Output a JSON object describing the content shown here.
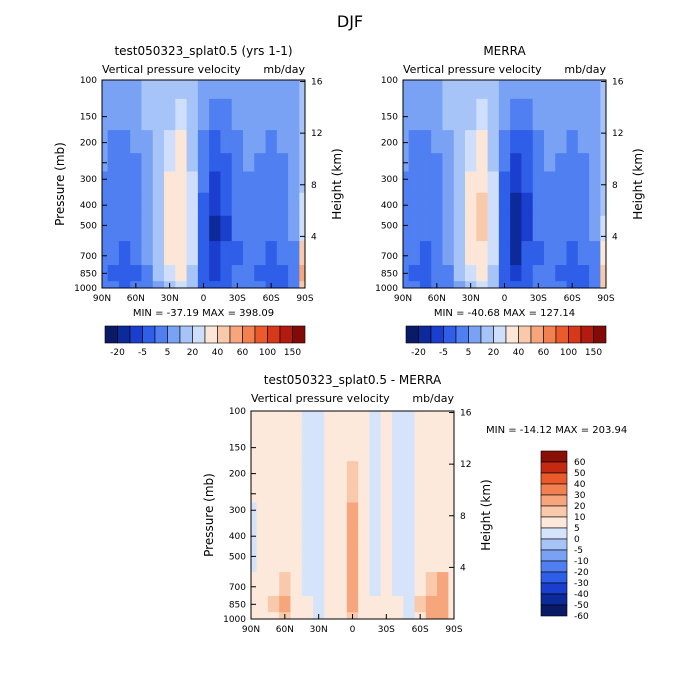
{
  "figure": {
    "title": "DJF"
  },
  "palettes": {
    "top": [
      "#0a1a66",
      "#0d2a9a",
      "#1a3fcf",
      "#2f5fe8",
      "#4f7ff0",
      "#7aa2f4",
      "#a7c4f8",
      "#cfdffb",
      "#fbe6d8",
      "#f9c9ab",
      "#f6a57c",
      "#f28050",
      "#ea5a2a",
      "#d6381a",
      "#b31b10",
      "#820a07"
    ],
    "diff": [
      "#0a1a66",
      "#0d2a9a",
      "#1a3fcf",
      "#2f5fe8",
      "#4f7ff0",
      "#7aa2f4",
      "#a7c4f8",
      "#d6e4fb",
      "#fde9dc",
      "#f9c9ab",
      "#f6a57c",
      "#f28050",
      "#ea5a2a",
      "#c42a12",
      "#8a0f07"
    ]
  },
  "chart_data": [
    {
      "type": "heatmap",
      "title": "test050323_splat0.5 (yrs 1-1)",
      "subtitle_left": "Vertical pressure velocity",
      "subtitle_right": "mb/day",
      "ylabel": "Pressure (mb)",
      "ylabel_right": "Height (km)",
      "x_ticks": [
        "90N",
        "60N",
        "30N",
        "0",
        "30S",
        "60S",
        "90S"
      ],
      "y_ticks": [
        "100",
        "150",
        "200",
        "250",
        "300",
        "400",
        "500",
        "700",
        "850",
        "1000"
      ],
      "y2_ticks": [
        "16",
        "12",
        "8",
        "4"
      ],
      "stats": "MIN = -37.19   MAX = 398.09",
      "colorbar": {
        "orientation": "horizontal",
        "labels": [
          "-20",
          "-5",
          "5",
          "20",
          "40",
          "60",
          "100",
          "150"
        ]
      },
      "field": {
        "type": "upward-heavy",
        "x": [
          -90,
          -80,
          -70,
          -60,
          -50,
          -40,
          -30,
          -20,
          -10,
          0,
          10,
          20,
          30,
          40,
          50,
          60,
          70,
          80,
          90
        ],
        "levels": [
          1000,
          850,
          700,
          500,
          400,
          300,
          250,
          200,
          150,
          100
        ],
        "values": [
          [
            -8,
            -10,
            -12,
            -10,
            -6,
            -2,
            4,
            6,
            2,
            -12,
            -18,
            -14,
            -8,
            -6,
            -10,
            -12,
            -14,
            -10,
            30
          ],
          [
            -10,
            -12,
            -14,
            -12,
            -6,
            0,
            8,
            10,
            4,
            -16,
            -24,
            -18,
            -10,
            -8,
            -12,
            -14,
            -12,
            -8,
            40
          ],
          [
            -8,
            -10,
            -12,
            -8,
            -4,
            2,
            10,
            14,
            6,
            -14,
            -28,
            -20,
            -12,
            -8,
            -10,
            -12,
            -10,
            -6,
            20
          ],
          [
            -6,
            -8,
            -10,
            -6,
            -2,
            4,
            12,
            18,
            6,
            -12,
            -32,
            -22,
            -10,
            -6,
            -8,
            -10,
            -8,
            -4,
            8
          ],
          [
            -6,
            -8,
            -10,
            -6,
            -2,
            4,
            12,
            18,
            8,
            -12,
            -30,
            -20,
            -10,
            -6,
            -8,
            -10,
            -8,
            -4,
            6
          ],
          [
            -6,
            -8,
            -8,
            -6,
            -2,
            2,
            10,
            16,
            6,
            -10,
            -26,
            -18,
            -8,
            -6,
            -6,
            -8,
            -6,
            -4,
            4
          ],
          [
            -4,
            -6,
            -8,
            -6,
            -2,
            2,
            8,
            12,
            4,
            -8,
            -20,
            -14,
            -8,
            -4,
            -6,
            -8,
            -6,
            -4,
            2
          ],
          [
            -4,
            -6,
            -6,
            -4,
            -2,
            0,
            6,
            10,
            2,
            -6,
            -14,
            -10,
            -6,
            -4,
            -4,
            -6,
            -4,
            -2,
            0
          ],
          [
            -2,
            -4,
            -4,
            -2,
            0,
            0,
            4,
            6,
            0,
            -4,
            -8,
            -6,
            -4,
            -2,
            -2,
            -4,
            -2,
            -2,
            0
          ],
          [
            -2,
            -2,
            -2,
            -2,
            0,
            0,
            2,
            2,
            0,
            -2,
            -4,
            -2,
            -2,
            -2,
            -2,
            -2,
            -2,
            -2,
            0
          ]
        ]
      }
    },
    {
      "type": "heatmap",
      "title": "MERRA",
      "subtitle_left": "Vertical pressure velocity",
      "subtitle_right": "mb/day",
      "ylabel": "",
      "ylabel_right": "Height (km)",
      "x_ticks": [
        "90N",
        "60N",
        "30N",
        "0",
        "30S",
        "60S",
        "90S"
      ],
      "y_ticks": [
        "100",
        "150",
        "200",
        "250",
        "300",
        "400",
        "500",
        "700",
        "850",
        "1000"
      ],
      "y2_ticks": [
        "16",
        "12",
        "8",
        "4"
      ],
      "stats": "MIN = -40.68   MAX = 127.14",
      "colorbar": {
        "orientation": "horizontal",
        "labels": [
          "-20",
          "-5",
          "5",
          "20",
          "40",
          "60",
          "100",
          "150"
        ]
      },
      "field": {
        "type": "upward-heavy",
        "x": [
          -90,
          -80,
          -70,
          -60,
          -50,
          -40,
          -30,
          -20,
          -10,
          0,
          10,
          20,
          30,
          40,
          50,
          60,
          70,
          80,
          90
        ],
        "levels": [
          1000,
          850,
          700,
          500,
          400,
          300,
          250,
          200,
          150,
          100
        ],
        "values": [
          [
            -8,
            -10,
            -12,
            -8,
            -6,
            -2,
            4,
            6,
            2,
            -14,
            -20,
            -16,
            -8,
            -6,
            -10,
            -12,
            -14,
            -10,
            25
          ],
          [
            -10,
            -12,
            -14,
            -10,
            -6,
            0,
            8,
            12,
            4,
            -18,
            -26,
            -18,
            -10,
            -8,
            -12,
            -14,
            -12,
            -8,
            30
          ],
          [
            -8,
            -10,
            -12,
            -8,
            -4,
            2,
            10,
            16,
            6,
            -16,
            -32,
            -20,
            -12,
            -8,
            -10,
            -12,
            -10,
            -6,
            15
          ],
          [
            -6,
            -8,
            -10,
            -6,
            -2,
            4,
            12,
            20,
            6,
            -14,
            -38,
            -24,
            -10,
            -6,
            -8,
            -10,
            -8,
            -4,
            6
          ],
          [
            -6,
            -8,
            -10,
            -6,
            -2,
            4,
            12,
            20,
            8,
            -14,
            -36,
            -22,
            -10,
            -6,
            -8,
            -10,
            -8,
            -4,
            4
          ],
          [
            -6,
            -8,
            -8,
            -6,
            -2,
            2,
            10,
            18,
            6,
            -12,
            -30,
            -20,
            -8,
            -6,
            -6,
            -8,
            -6,
            -4,
            2
          ],
          [
            -4,
            -6,
            -8,
            -6,
            -2,
            2,
            8,
            14,
            4,
            -10,
            -24,
            -16,
            -8,
            -4,
            -6,
            -8,
            -6,
            -4,
            2
          ],
          [
            -4,
            -6,
            -6,
            -4,
            -2,
            0,
            6,
            10,
            2,
            -8,
            -16,
            -12,
            -6,
            -4,
            -4,
            -6,
            -4,
            -2,
            0
          ],
          [
            -2,
            -4,
            -4,
            -2,
            0,
            0,
            4,
            6,
            0,
            -4,
            -10,
            -6,
            -4,
            -2,
            -2,
            -4,
            -2,
            -2,
            0
          ],
          [
            -2,
            -2,
            -2,
            -2,
            0,
            0,
            2,
            2,
            0,
            -2,
            -4,
            -2,
            -2,
            -2,
            -2,
            -2,
            -2,
            -2,
            0
          ]
        ]
      }
    },
    {
      "type": "heatmap",
      "title": "test050323_splat0.5 - MERRA",
      "subtitle_left": "Vertical pressure velocity",
      "subtitle_right": "mb/day",
      "ylabel": "Pressure (mb)",
      "ylabel_right": "Height (km)",
      "x_ticks": [
        "90N",
        "60N",
        "30N",
        "0",
        "30S",
        "60S",
        "90S"
      ],
      "y_ticks": [
        "100",
        "150",
        "200",
        "250",
        "300",
        "400",
        "500",
        "700",
        "850",
        "1000"
      ],
      "y2_ticks": [
        "16",
        "12",
        "8",
        "4"
      ],
      "stats": "MIN = -14.12   MAX = 203.94",
      "colorbar": {
        "orientation": "vertical",
        "labels": [
          "60",
          "50",
          "40",
          "30",
          "20",
          "10",
          "5",
          "0",
          "-5",
          "-10",
          "-20",
          "-30",
          "-40",
          "-50",
          "-60"
        ]
      },
      "field": {
        "type": "difference",
        "x": [
          -90,
          -80,
          -70,
          -60,
          -50,
          -40,
          -30,
          -20,
          -10,
          0,
          10,
          20,
          30,
          40,
          50,
          60,
          70,
          80,
          90
        ],
        "levels": [
          1000,
          850,
          700,
          500,
          400,
          300,
          250,
          200,
          150,
          100
        ],
        "values": [
          [
            0,
            2,
            4,
            6,
            2,
            0,
            -2,
            0,
            2,
            8,
            2,
            0,
            2,
            0,
            -2,
            4,
            10,
            12,
            0
          ],
          [
            0,
            2,
            6,
            10,
            4,
            0,
            -2,
            2,
            4,
            12,
            4,
            0,
            2,
            0,
            -2,
            6,
            14,
            16,
            2
          ],
          [
            0,
            2,
            4,
            8,
            2,
            -2,
            -2,
            0,
            2,
            10,
            2,
            -2,
            0,
            -2,
            -2,
            4,
            8,
            10,
            0
          ],
          [
            -2,
            0,
            2,
            4,
            2,
            -2,
            -2,
            0,
            2,
            16,
            2,
            -2,
            0,
            -2,
            -2,
            2,
            4,
            4,
            0
          ],
          [
            -2,
            0,
            2,
            2,
            0,
            -2,
            -2,
            0,
            2,
            18,
            2,
            -2,
            0,
            -2,
            -2,
            2,
            2,
            2,
            0
          ],
          [
            -2,
            0,
            2,
            2,
            0,
            -2,
            -2,
            0,
            2,
            12,
            2,
            -2,
            0,
            -2,
            -2,
            0,
            2,
            2,
            0
          ],
          [
            0,
            0,
            2,
            2,
            0,
            -2,
            -2,
            0,
            2,
            8,
            2,
            -2,
            0,
            -2,
            -2,
            0,
            2,
            2,
            0
          ],
          [
            0,
            0,
            2,
            2,
            0,
            -2,
            -2,
            2,
            2,
            6,
            2,
            -2,
            0,
            -2,
            -2,
            0,
            2,
            2,
            0
          ],
          [
            2,
            2,
            2,
            2,
            2,
            -2,
            -2,
            2,
            2,
            4,
            2,
            -2,
            2,
            -2,
            -2,
            2,
            2,
            2,
            0
          ],
          [
            2,
            2,
            2,
            2,
            2,
            -2,
            -2,
            2,
            2,
            2,
            2,
            -2,
            2,
            -2,
            -2,
            2,
            2,
            2,
            2
          ]
        ]
      }
    }
  ]
}
